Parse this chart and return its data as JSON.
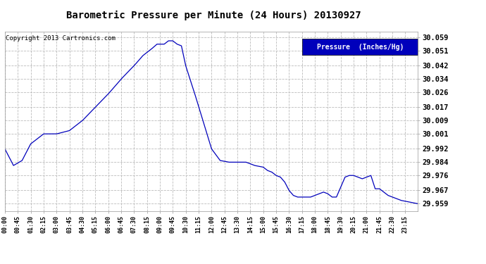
{
  "title": "Barometric Pressure per Minute (24 Hours) 20130927",
  "copyright_text": "Copyright 2013 Cartronics.com",
  "legend_label": "Pressure  (Inches/Hg)",
  "line_color": "#0000bb",
  "background_color": "#ffffff",
  "grid_color": "#bbbbbb",
  "yticks": [
    29.959,
    29.967,
    29.976,
    29.984,
    29.992,
    30.001,
    30.009,
    30.017,
    30.026,
    30.034,
    30.042,
    30.051,
    30.059
  ],
  "ylim": [
    29.9545,
    30.0625
  ],
  "xlim": [
    0,
    1439
  ],
  "xtick_labels": [
    "00:00",
    "00:45",
    "01:30",
    "02:15",
    "03:00",
    "03:45",
    "04:30",
    "05:15",
    "06:00",
    "06:45",
    "07:30",
    "08:15",
    "09:00",
    "09:45",
    "10:30",
    "11:15",
    "12:00",
    "12:45",
    "13:30",
    "14:15",
    "15:00",
    "15:45",
    "16:30",
    "17:15",
    "18:00",
    "18:45",
    "19:30",
    "20:15",
    "21:00",
    "21:45",
    "22:30",
    "23:15"
  ],
  "key_points_x": [
    0,
    30,
    60,
    90,
    135,
    180,
    225,
    270,
    315,
    360,
    405,
    450,
    480,
    495,
    510,
    530,
    555,
    570,
    585,
    600,
    615,
    630,
    660,
    690,
    720,
    750,
    780,
    810,
    840,
    870,
    900,
    915,
    930,
    945,
    960,
    975,
    990,
    1005,
    1020,
    1035,
    1050,
    1065,
    1080,
    1095,
    1110,
    1125,
    1140,
    1155,
    1185,
    1200,
    1215,
    1230,
    1245,
    1260,
    1275,
    1290,
    1305,
    1320,
    1335,
    1350,
    1380,
    1410,
    1439
  ],
  "key_points_y": [
    29.992,
    29.982,
    29.985,
    29.995,
    30.001,
    30.001,
    30.003,
    30.009,
    30.017,
    30.025,
    30.034,
    30.042,
    30.048,
    30.05,
    30.052,
    30.055,
    30.055,
    30.057,
    30.057,
    30.055,
    30.054,
    30.042,
    30.026,
    30.009,
    29.992,
    29.985,
    29.984,
    29.984,
    29.984,
    29.982,
    29.981,
    29.979,
    29.978,
    29.976,
    29.975,
    29.972,
    29.967,
    29.964,
    29.963,
    29.963,
    29.963,
    29.963,
    29.964,
    29.965,
    29.966,
    29.965,
    29.963,
    29.963,
    29.975,
    29.976,
    29.976,
    29.975,
    29.974,
    29.975,
    29.976,
    29.968,
    29.968,
    29.966,
    29.964,
    29.963,
    29.961,
    29.96,
    29.959
  ]
}
